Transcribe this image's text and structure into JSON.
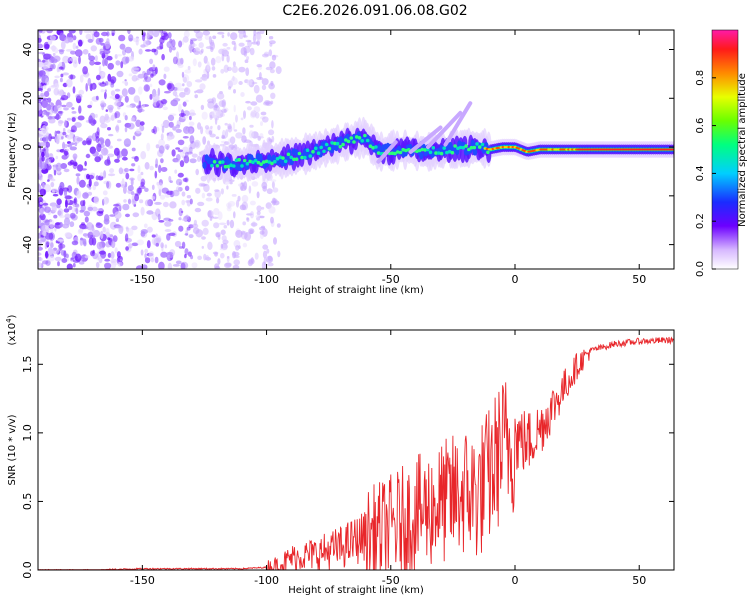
{
  "figure": {
    "title": "C2E6.2026.091.06.08.G02"
  },
  "chart_data": [
    {
      "type": "heatmap",
      "xlabel": "Height of straight line (km)",
      "ylabel": "Frequency (Hz)",
      "xlim": [
        -192,
        64
      ],
      "ylim": [
        -50,
        48
      ],
      "xticks": [
        -150,
        -100,
        -50,
        0,
        50
      ],
      "yticks": [
        -40,
        -20,
        0,
        20,
        40
      ],
      "colorbar": {
        "label": "Normalized spectral amplitude",
        "range": [
          0,
          1
        ],
        "ticks": [
          0.0,
          0.2,
          0.4,
          0.6,
          0.8
        ],
        "tick_labels": [
          "0.0",
          "0.2",
          "0.4",
          "0.6",
          "0.8"
        ]
      },
      "ridge": {
        "x": [
          -125,
          -115,
          -105,
          -95,
          -85,
          -75,
          -65,
          -60,
          -55,
          -45,
          -35,
          -25,
          -15,
          -10,
          -5,
          0,
          5,
          10,
          20,
          30,
          40,
          50,
          64
        ],
        "freq": [
          -6,
          -7,
          -6,
          -5,
          -3,
          0,
          3,
          4,
          -2,
          -1,
          -2,
          -1,
          0,
          -1,
          0,
          0,
          -2,
          -1,
          -1,
          -1,
          -1,
          -1,
          -1
        ]
      },
      "noise_region_x": [
        -192,
        -95
      ]
    },
    {
      "type": "line",
      "xlabel": "Height of straight line (km)",
      "ylabel": "SNR (10 * v/v)",
      "y_multiplier": "(x10",
      "y_multiplier_exp": "4",
      "y_multiplier_close": ")",
      "xlim": [
        -192,
        64
      ],
      "ylim": [
        0,
        1.75
      ],
      "xticks": [
        -150,
        -100,
        -50,
        0,
        50
      ],
      "yticks": [
        0.0,
        0.5,
        1.0,
        1.5
      ],
      "ytick_labels": [
        "0.0",
        "0.5",
        "1.0",
        "1.5"
      ],
      "series_color": "#e8262a",
      "x": [
        -192,
        -170,
        -150,
        -130,
        -110,
        -100,
        -95,
        -90,
        -80,
        -70,
        -60,
        -50,
        -40,
        -30,
        -20,
        -15,
        -10,
        -5,
        0,
        5,
        10,
        15,
        20,
        25,
        30,
        40,
        50,
        64
      ],
      "y": [
        0.0,
        0.0,
        0.01,
        0.01,
        0.01,
        0.02,
        0.04,
        0.1,
        0.13,
        0.18,
        0.27,
        0.35,
        0.45,
        0.53,
        0.62,
        0.6,
        0.75,
        0.95,
        1.0,
        0.95,
        1.05,
        1.2,
        1.35,
        1.5,
        1.6,
        1.65,
        1.67,
        1.68
      ]
    }
  ]
}
